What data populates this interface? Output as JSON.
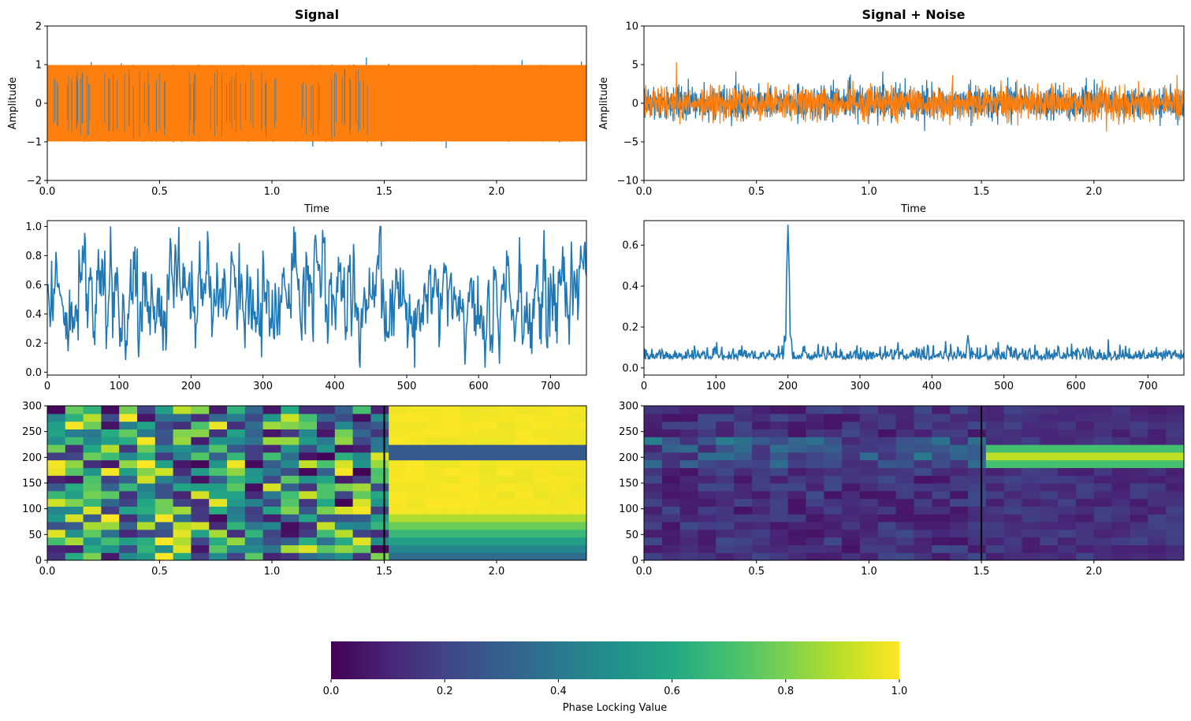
{
  "colors": {
    "series1": "#1f77b4",
    "series2": "#ff7f0e",
    "marker_line": "#000000"
  },
  "colorbar": {
    "label": "Phase Locking Value",
    "ticks": [
      "0.0",
      "0.2",
      "0.4",
      "0.6",
      "0.8",
      "1.0"
    ],
    "range": [
      0,
      1
    ],
    "colormap": "viridis",
    "orientation": "horizontal"
  },
  "chart_data": [
    {
      "id": "signal",
      "type": "line",
      "title": "Signal",
      "xlabel": "Time",
      "ylabel": "Amplitude",
      "xlim": [
        0,
        2.4
      ],
      "ylim": [
        -2,
        2
      ],
      "xticks": [
        "0.0",
        "0.5",
        "1.0",
        "1.5",
        "2.0"
      ],
      "yticks": [
        "−2",
        "−1",
        "0",
        "1",
        "2"
      ],
      "series": [
        {
          "color": "#1f77b4",
          "description": "dense oscillation between -1 and 1, t 0-2.4",
          "amplitude": 1
        },
        {
          "color": "#ff7f0e",
          "description": "dense oscillation between -1 and 1 overlaying blue",
          "amplitude": 1
        }
      ]
    },
    {
      "id": "signal-noise",
      "type": "line",
      "title": "Signal + Noise",
      "xlabel": "Time",
      "ylabel": "Amplitude",
      "xlim": [
        0,
        2.4
      ],
      "ylim": [
        -10,
        10
      ],
      "xticks": [
        "0.0",
        "0.5",
        "1.0",
        "1.5",
        "2.0"
      ],
      "yticks": [
        "−10",
        "−5",
        "0",
        "5",
        "10"
      ],
      "series": [
        {
          "color": "#1f77b4",
          "description": "noisy signal roughly within -3.5 to 4",
          "peak": 4.1
        },
        {
          "color": "#ff7f0e",
          "description": "noisy signal roughly within -4 to 5.3",
          "peak": 5.3
        }
      ]
    },
    {
      "id": "plv-signal-trace",
      "type": "line",
      "title": "",
      "xlabel": "",
      "ylabel": "",
      "xlim": [
        0,
        750
      ],
      "ylim": [
        -0.02,
        1.04
      ],
      "xticks": [
        "0",
        "100",
        "200",
        "300",
        "400",
        "500",
        "600",
        "700"
      ],
      "yticks": [
        "0.0",
        "0.2",
        "0.4",
        "0.6",
        "0.8",
        "1.0"
      ],
      "series": [
        {
          "color": "#1f77b4",
          "description": "fluctuating values between ~0.03 and ~1.0, mean ~0.5",
          "min": 0.03,
          "max": 1.0,
          "mean": 0.5
        }
      ]
    },
    {
      "id": "plv-noise-trace",
      "type": "line",
      "title": "",
      "xlabel": "",
      "ylabel": "",
      "xlim": [
        0,
        750
      ],
      "ylim": [
        -0.035,
        0.72
      ],
      "xticks": [
        "0",
        "100",
        "200",
        "300",
        "400",
        "500",
        "600",
        "700"
      ],
      "yticks": [
        "0.0",
        "0.2",
        "0.4",
        "0.6"
      ],
      "series": [
        {
          "color": "#1f77b4",
          "description": "low baseline ~0.05 with a peak of ~0.7 at x=200 and a small bump ~0.17 near x=450",
          "baseline": 0.05,
          "peak_x": 200,
          "peak_y": 0.7
        }
      ]
    },
    {
      "id": "plv-signal-heatmap",
      "type": "heatmap",
      "title": "",
      "xlim": [
        0,
        2.4
      ],
      "ylim": [
        0,
        300
      ],
      "xticks": [
        "0.0",
        "0.5",
        "1.0",
        "1.5",
        "2.0"
      ],
      "yticks": [
        "0",
        "50",
        "100",
        "150",
        "200",
        "250",
        "300"
      ],
      "vline_x": 1.5,
      "description": "random phase locking values for t < 1.5; for t > 1.5 values near 1 except a dark band at ~210 and a gradient for frequencies below ~100"
    },
    {
      "id": "plv-noise-heatmap",
      "type": "heatmap",
      "title": "",
      "xlim": [
        0,
        2.4
      ],
      "ylim": [
        0,
        300
      ],
      "xticks": [
        "0.0",
        "0.5",
        "1.0",
        "1.5",
        "2.0"
      ],
      "yticks": [
        "0",
        "50",
        "100",
        "150",
        "200",
        "250",
        "300"
      ],
      "vline_x": 1.5,
      "description": "mostly low values (0.05-0.3) for t < 1.5; for t > 1.5 a high band (~0.9) around 185-230"
    }
  ]
}
